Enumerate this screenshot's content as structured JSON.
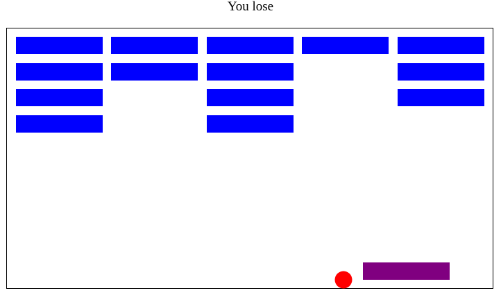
{
  "status": "You lose"
}
